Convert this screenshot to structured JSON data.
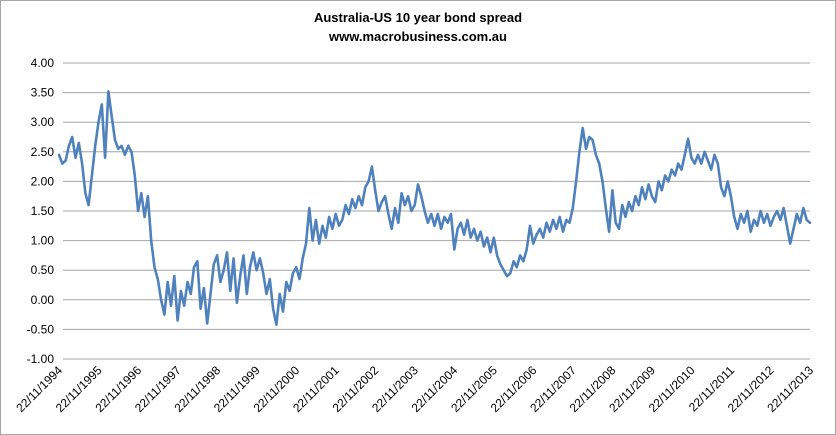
{
  "title": {
    "line1": "Australia-US 10 year bond spread",
    "line2": "www.macrobusiness.com.au"
  },
  "chart_data": {
    "type": "line",
    "title": "Australia-US 10 year bond spread",
    "subtitle": "www.macrobusiness.com.au",
    "xlabel": "",
    "ylabel": "",
    "ylim": [
      -1.0,
      4.0
    ],
    "grid": "horizontal only",
    "legend": "none",
    "colors": {
      "line": "#4F81BD",
      "grid": "#A6A6A6",
      "text": "#000000",
      "border": "#A6A6A6"
    },
    "y_ticks": [
      {
        "v": 4.0,
        "label": "4.00"
      },
      {
        "v": 3.5,
        "label": "3.50"
      },
      {
        "v": 3.0,
        "label": "3.00"
      },
      {
        "v": 2.5,
        "label": "2.50"
      },
      {
        "v": 2.0,
        "label": "2.00"
      },
      {
        "v": 1.5,
        "label": "1.50"
      },
      {
        "v": 1.0,
        "label": "1.00"
      },
      {
        "v": 0.5,
        "label": "0.50"
      },
      {
        "v": 0.0,
        "label": "0.00"
      },
      {
        "v": -0.5,
        "label": "-0.50"
      },
      {
        "v": -1.0,
        "label": "-1.00"
      }
    ],
    "x_ticks": [
      "22/11/1994",
      "22/11/1995",
      "22/11/1996",
      "22/11/1997",
      "22/11/1998",
      "22/11/1999",
      "22/11/2000",
      "22/11/2001",
      "22/11/2002",
      "22/11/2003",
      "22/11/2004",
      "22/11/2005",
      "22/11/2006",
      "22/11/2007",
      "22/11/2008",
      "22/11/2009",
      "22/11/2010",
      "22/11/2011",
      "22/11/2012",
      "22/11/2013"
    ],
    "series": [
      {
        "name": "Australia-US 10 year bond spread (%)",
        "start": "Nov 1994",
        "end": "Nov 2013",
        "frequency": "monthly estimates read from chart",
        "values": [
          2.45,
          2.3,
          2.35,
          2.6,
          2.75,
          2.4,
          2.65,
          2.3,
          1.8,
          1.6,
          2.1,
          2.6,
          3.0,
          3.3,
          2.4,
          3.52,
          3.1,
          2.7,
          2.55,
          2.6,
          2.45,
          2.6,
          2.5,
          2.1,
          1.5,
          1.8,
          1.4,
          1.75,
          1.0,
          0.55,
          0.35,
          0.0,
          -0.25,
          0.3,
          -0.1,
          0.4,
          -0.35,
          0.15,
          -0.1,
          0.3,
          0.1,
          0.55,
          0.65,
          -0.15,
          0.2,
          -0.4,
          0.1,
          0.6,
          0.75,
          0.3,
          0.5,
          0.8,
          0.15,
          0.7,
          -0.05,
          0.4,
          0.75,
          0.1,
          0.55,
          0.8,
          0.5,
          0.7,
          0.45,
          0.1,
          0.35,
          -0.15,
          -0.42,
          0.1,
          -0.2,
          0.3,
          0.15,
          0.45,
          0.55,
          0.35,
          0.7,
          0.95,
          1.55,
          1.0,
          1.35,
          0.95,
          1.25,
          1.05,
          1.4,
          1.2,
          1.45,
          1.25,
          1.35,
          1.6,
          1.45,
          1.7,
          1.55,
          1.75,
          1.6,
          1.9,
          2.0,
          2.25,
          1.85,
          1.5,
          1.65,
          1.75,
          1.45,
          1.2,
          1.55,
          1.3,
          1.8,
          1.6,
          1.75,
          1.5,
          1.6,
          1.95,
          1.75,
          1.5,
          1.3,
          1.45,
          1.25,
          1.45,
          1.2,
          1.4,
          1.3,
          1.45,
          0.85,
          1.2,
          1.3,
          1.1,
          1.35,
          1.05,
          1.2,
          1.0,
          1.15,
          0.9,
          1.05,
          0.8,
          1.05,
          0.75,
          0.6,
          0.5,
          0.4,
          0.45,
          0.65,
          0.55,
          0.75,
          0.65,
          0.85,
          1.25,
          0.95,
          1.1,
          1.2,
          1.05,
          1.3,
          1.15,
          1.35,
          1.2,
          1.4,
          1.15,
          1.35,
          1.3,
          1.55,
          2.0,
          2.5,
          2.9,
          2.55,
          2.75,
          2.7,
          2.45,
          2.3,
          2.0,
          1.55,
          1.15,
          1.85,
          1.3,
          1.2,
          1.6,
          1.4,
          1.65,
          1.5,
          1.75,
          1.6,
          1.9,
          1.7,
          1.95,
          1.75,
          1.65,
          2.0,
          1.85,
          2.1,
          2.0,
          2.2,
          2.1,
          2.3,
          2.2,
          2.45,
          2.72,
          2.4,
          2.3,
          2.45,
          2.3,
          2.5,
          2.35,
          2.2,
          2.45,
          2.3,
          1.9,
          1.75,
          2.0,
          1.75,
          1.4,
          1.2,
          1.45,
          1.3,
          1.5,
          1.15,
          1.35,
          1.25,
          1.5,
          1.3,
          1.45,
          1.25,
          1.4,
          1.5,
          1.35,
          1.55,
          1.25,
          0.95,
          1.2,
          1.45,
          1.3,
          1.55,
          1.35,
          1.3
        ]
      }
    ]
  }
}
